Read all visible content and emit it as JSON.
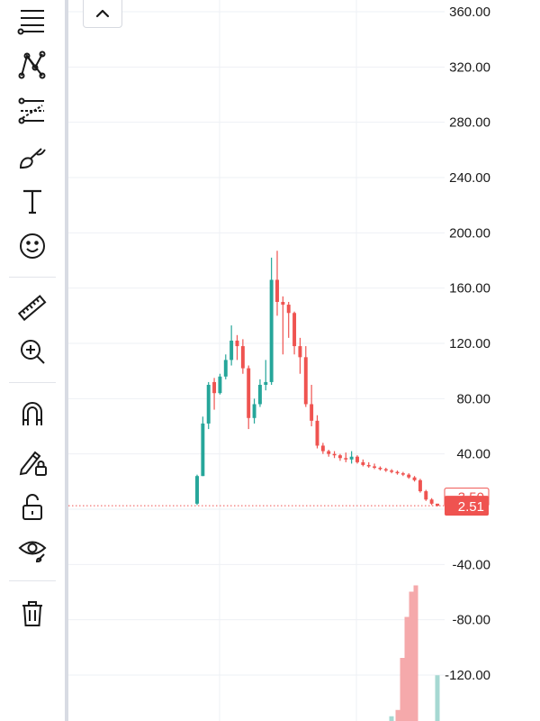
{
  "toolbar": {
    "tools": [
      {
        "name": "trend-lines-icon"
      },
      {
        "name": "patterns-icon"
      },
      {
        "name": "fib-retracement-icon"
      },
      {
        "name": "brush-icon"
      },
      {
        "name": "text-tool-icon"
      },
      {
        "name": "emoji-icon"
      },
      {
        "name": "ruler-icon"
      },
      {
        "name": "zoom-in-icon"
      },
      {
        "name": "magnet-icon"
      },
      {
        "name": "lock-drawings-icon"
      },
      {
        "name": "unlock-icon"
      },
      {
        "name": "eye-icon"
      },
      {
        "name": "trash-icon"
      }
    ]
  },
  "collapse_button": {
    "icon": "chevron-up-icon"
  },
  "chart_data": {
    "type": "candlestick",
    "y_ticks": [
      "360.00",
      "320.00",
      "280.00",
      "240.00",
      "200.00",
      "160.00",
      "120.00",
      "80.00",
      "40.00",
      "",
      "-40.00",
      "-80.00",
      "-120.00"
    ],
    "ylim": [
      -150,
      370
    ],
    "grid": true,
    "price_labels": {
      "reference": {
        "value": 3.5,
        "text": "3.50"
      },
      "last": {
        "value": 2.51,
        "text": "2.51"
      }
    },
    "colors": {
      "up": "#26a69a",
      "down": "#ef5350",
      "up_volume": "#a6d8d2",
      "down_volume": "#f5a9ab",
      "grid": "#eef0f4",
      "axis_text": "#1a1a1a"
    },
    "candles": [
      {
        "o": 4,
        "h": 25,
        "l": 3,
        "c": 24
      },
      {
        "o": 24,
        "h": 67,
        "l": 24,
        "c": 62
      },
      {
        "o": 62,
        "h": 92,
        "l": 58,
        "c": 90
      },
      {
        "o": 92,
        "h": 95,
        "l": 72,
        "c": 84
      },
      {
        "o": 84,
        "h": 98,
        "l": 83,
        "c": 96
      },
      {
        "o": 96,
        "h": 112,
        "l": 94,
        "c": 108
      },
      {
        "o": 108,
        "h": 133,
        "l": 104,
        "c": 122
      },
      {
        "o": 122,
        "h": 126,
        "l": 108,
        "c": 118
      },
      {
        "o": 118,
        "h": 123,
        "l": 98,
        "c": 102
      },
      {
        "o": 102,
        "h": 104,
        "l": 58,
        "c": 66
      },
      {
        "o": 66,
        "h": 80,
        "l": 62,
        "c": 76
      },
      {
        "o": 76,
        "h": 94,
        "l": 74,
        "c": 90
      },
      {
        "o": 90,
        "h": 108,
        "l": 86,
        "c": 92
      },
      {
        "o": 92,
        "h": 182,
        "l": 90,
        "c": 166
      },
      {
        "o": 166,
        "h": 187,
        "l": 140,
        "c": 150
      },
      {
        "o": 150,
        "h": 154,
        "l": 112,
        "c": 148
      },
      {
        "o": 148,
        "h": 150,
        "l": 124,
        "c": 142
      },
      {
        "o": 142,
        "h": 143,
        "l": 112,
        "c": 118
      },
      {
        "o": 118,
        "h": 124,
        "l": 98,
        "c": 110
      },
      {
        "o": 110,
        "h": 118,
        "l": 74,
        "c": 76
      },
      {
        "o": 76,
        "h": 90,
        "l": 60,
        "c": 64
      },
      {
        "o": 64,
        "h": 68,
        "l": 44,
        "c": 46
      },
      {
        "o": 46,
        "h": 48,
        "l": 40,
        "c": 42
      },
      {
        "o": 42,
        "h": 43,
        "l": 38,
        "c": 40
      },
      {
        "o": 40,
        "h": 42,
        "l": 37,
        "c": 39
      },
      {
        "o": 39,
        "h": 40,
        "l": 35,
        "c": 37
      },
      {
        "o": 37,
        "h": 41,
        "l": 34,
        "c": 36
      },
      {
        "o": 36,
        "h": 42,
        "l": 33,
        "c": 38
      },
      {
        "o": 38,
        "h": 39,
        "l": 33,
        "c": 34
      },
      {
        "o": 34,
        "h": 36,
        "l": 31,
        "c": 32
      },
      {
        "o": 32,
        "h": 34,
        "l": 30,
        "c": 31
      },
      {
        "o": 31,
        "h": 33,
        "l": 29,
        "c": 30
      },
      {
        "o": 30,
        "h": 31,
        "l": 28,
        "c": 29
      },
      {
        "o": 29,
        "h": 30,
        "l": 27,
        "c": 28
      },
      {
        "o": 28,
        "h": 29,
        "l": 26,
        "c": 27
      },
      {
        "o": 27,
        "h": 28,
        "l": 25,
        "c": 26
      },
      {
        "o": 26,
        "h": 27,
        "l": 24,
        "c": 25
      },
      {
        "o": 25,
        "h": 26,
        "l": 22,
        "c": 23
      },
      {
        "o": 23,
        "h": 24,
        "l": 20,
        "c": 21
      },
      {
        "o": 21,
        "h": 22,
        "l": 12,
        "c": 13
      },
      {
        "o": 13,
        "h": 14,
        "l": 6,
        "c": 7
      },
      {
        "o": 7,
        "h": 8,
        "l": 3,
        "c": 4
      },
      {
        "o": 4,
        "h": 4,
        "l": 2,
        "c": 2.51
      }
    ],
    "volume": [
      {
        "up": true,
        "level": 0.03
      },
      {
        "up": false,
        "level": 0.07
      },
      {
        "up": false,
        "level": 0.4
      },
      {
        "up": false,
        "level": 0.66
      },
      {
        "up": false,
        "level": 0.82
      },
      {
        "up": false,
        "level": 0.86
      },
      {
        "up": true,
        "level": 0.29
      }
    ]
  }
}
